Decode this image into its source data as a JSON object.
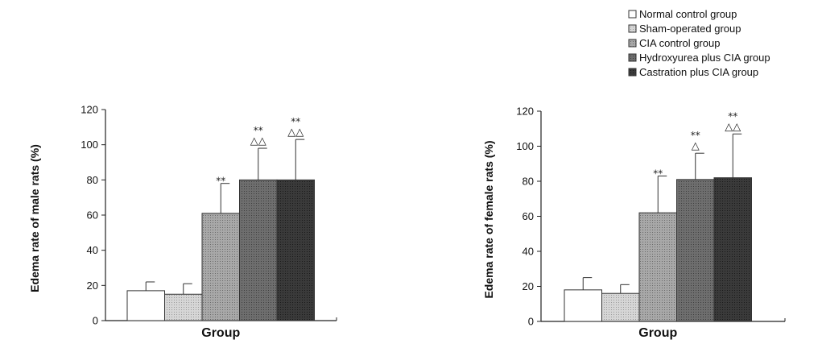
{
  "chart_data": [
    {
      "type": "bar",
      "categories": [
        "Normal control group",
        "Sham-operated group",
        "CIA control group",
        "Hydroxyurea plus CIA group",
        "Castration plus CIA group"
      ],
      "values": [
        17,
        15,
        61,
        80,
        80
      ],
      "error": [
        5,
        6,
        17,
        18,
        23
      ],
      "annotations": [
        [
          "",
          ""
        ],
        [
          "",
          ""
        ],
        [
          "**",
          ""
        ],
        [
          "**",
          "△△"
        ],
        [
          "**",
          "△△"
        ]
      ],
      "xlabel": "Group",
      "ylabel": "Edema rate of male rats (%)",
      "ylim": [
        0,
        120
      ],
      "yticks": [
        0,
        20,
        40,
        60,
        80,
        100,
        120
      ],
      "ytick_labels": [
        "0",
        "20",
        "40",
        "60",
        "80",
        "100",
        "120"
      ]
    },
    {
      "type": "bar",
      "categories": [
        "Normal control group",
        "Sham-operated group",
        "CIA control group",
        "Hydroxyurea plus CIA group",
        "Castration plus CIA group"
      ],
      "values": [
        18,
        16,
        62,
        81,
        82
      ],
      "error": [
        7,
        5,
        21,
        15,
        25
      ],
      "annotations": [
        [
          "",
          ""
        ],
        [
          "",
          ""
        ],
        [
          "**",
          ""
        ],
        [
          "**",
          "△"
        ],
        [
          "**",
          "△△"
        ]
      ],
      "xlabel": "Group",
      "ylabel": "Edema rate of female rats (%)",
      "ylim": [
        0,
        120
      ],
      "yticks": [
        0,
        20,
        40,
        60,
        80,
        100,
        120
      ],
      "ytick_labels": [
        "0",
        "20",
        "40",
        "60",
        "80",
        "100",
        "120"
      ]
    }
  ],
  "legend": {
    "placement": "top-right",
    "entries": [
      "Normal control group",
      "Sham-operated group",
      "CIA control group",
      "Hydroxyurea plus CIA group",
      "Castration plus CIA group"
    ]
  },
  "colors": {
    "series": [
      "#ffffff",
      "#d6d6d6",
      "#a8a8a8",
      "#6e6e6e",
      "#3a3a3a"
    ],
    "bar_stroke": "#333333",
    "axis": "#222222"
  }
}
